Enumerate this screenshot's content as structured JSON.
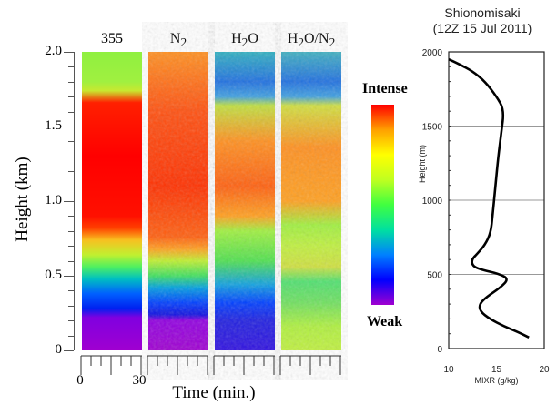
{
  "chart_data": [
    {
      "type": "heatmap",
      "ylabel": "Height (km)",
      "xlabel": "Time (min.)",
      "ylim": [
        0,
        2.0
      ],
      "yticks": [
        "2.0",
        "1.5",
        "1.0",
        "0.5",
        "0"
      ],
      "xlim": [
        0,
        30
      ],
      "xticks": [
        "0",
        "30"
      ],
      "panels": [
        {
          "title": "355",
          "title_html": "355"
        },
        {
          "title": "N2",
          "base": "N",
          "sub": "2"
        },
        {
          "title": "H2O",
          "base": "H",
          "sub": "2",
          "rest": "O"
        },
        {
          "title": "H2O/N2",
          "base": "H",
          "sub": "2",
          "rest": "O/N",
          "sub2": "2"
        }
      ],
      "colorbar": {
        "top_label": "Intense",
        "bottom_label": "Weak",
        "colors": [
          "#a000d0",
          "#0000ff",
          "#0080ff",
          "#00e0a0",
          "#40ff40",
          "#c0ff20",
          "#ffff00",
          "#ffa000",
          "#ff0000"
        ]
      }
    },
    {
      "type": "line",
      "title": "Shionomisaki",
      "subtitle": "(12Z 15 Jul 2011)",
      "xlabel": "MIXR (g/kg)",
      "ylabel": "Height (m)",
      "xlim": [
        10,
        20
      ],
      "ylim": [
        0,
        2000
      ],
      "xticks": [
        "10",
        "15",
        "20"
      ],
      "yticks": [
        "2000",
        "1500",
        "1000",
        "500",
        "0"
      ],
      "grid": "horizontal",
      "points": [
        [
          10,
          1950
        ],
        [
          11,
          1920
        ],
        [
          12.5,
          1870
        ],
        [
          13.8,
          1800
        ],
        [
          15,
          1700
        ],
        [
          15.8,
          1610
        ],
        [
          15.5,
          1450
        ],
        [
          15.2,
          1300
        ],
        [
          14.9,
          1100
        ],
        [
          14.6,
          900
        ],
        [
          14.4,
          780
        ],
        [
          13.8,
          700
        ],
        [
          13,
          640
        ],
        [
          12.4,
          600
        ],
        [
          12.5,
          555
        ],
        [
          13.5,
          530
        ],
        [
          15.2,
          505
        ],
        [
          16.3,
          470
        ],
        [
          15.4,
          410
        ],
        [
          14,
          350
        ],
        [
          13.2,
          300
        ],
        [
          13.3,
          250
        ],
        [
          14.3,
          200
        ],
        [
          15.8,
          150
        ],
        [
          17.3,
          110
        ],
        [
          18.4,
          75
        ]
      ]
    }
  ]
}
